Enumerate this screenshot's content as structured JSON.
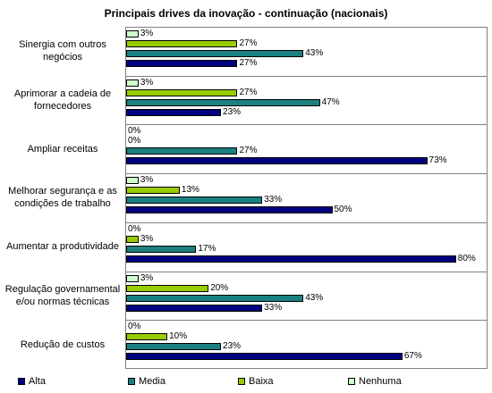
{
  "chart_data": {
    "type": "bar",
    "orientation": "horizontal",
    "title": "Principais drives da inovação - continuação (nacionais)",
    "categories": [
      "Sinergia com outros negócios",
      "Aprimorar a cadeia de fornecedores",
      "Ampliar receitas",
      "Melhorar segurança e as condições de trabalho",
      "Aumentar a produtividade",
      "Regulação governamental e/ou normas técnicas",
      "Redução de custos"
    ],
    "series": [
      {
        "name": "Alta",
        "color": "#000080",
        "values": [
          27,
          23,
          73,
          50,
          80,
          33,
          67
        ],
        "value_labels": [
          "27%",
          "23%",
          "73%",
          "50%",
          "80%",
          "33%",
          "67%"
        ]
      },
      {
        "name": "Media",
        "color": "#1a8080",
        "values": [
          43,
          47,
          27,
          33,
          17,
          43,
          23
        ],
        "value_labels": [
          "43%",
          "47%",
          "27%",
          "33%",
          "17%",
          "43%",
          "23%"
        ]
      },
      {
        "name": "Baixa",
        "color": "#99cc00",
        "values": [
          27,
          27,
          0,
          13,
          3,
          20,
          10
        ],
        "value_labels": [
          "27%",
          "27%",
          "0%",
          "13%",
          "3%",
          "20%",
          "10%"
        ]
      },
      {
        "name": "Nenhuma",
        "color": "#ccffcc",
        "values": [
          3,
          3,
          0,
          3,
          0,
          3,
          0
        ],
        "value_labels": [
          "3%",
          "3%",
          "0%",
          "3%",
          "0%",
          "3%",
          "0%"
        ]
      }
    ],
    "legend": "bottom"
  }
}
